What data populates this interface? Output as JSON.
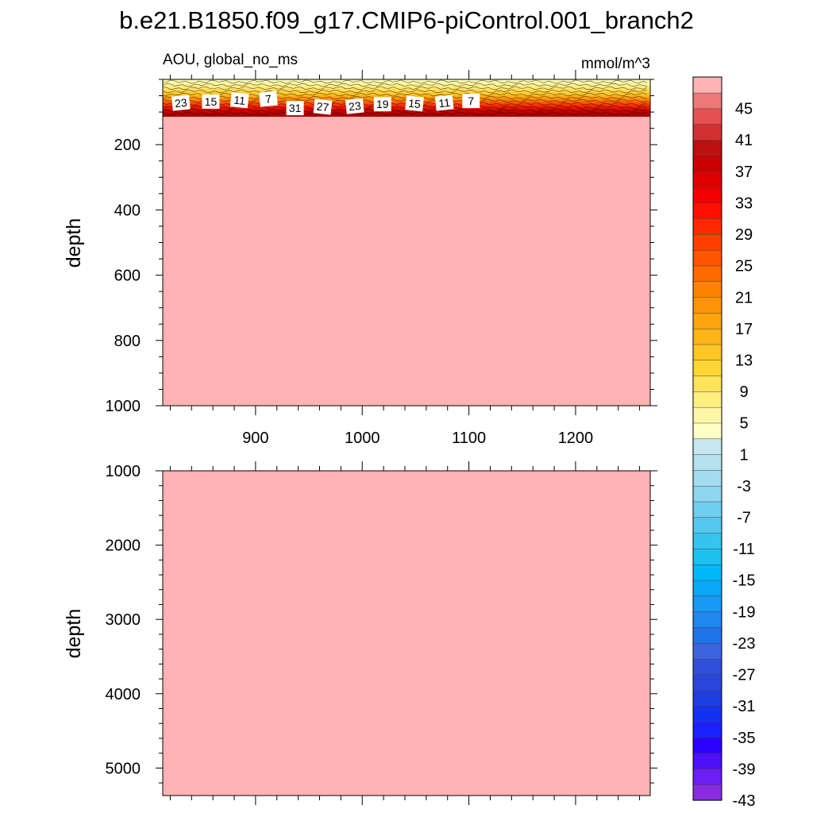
{
  "title": "b.e21.B1850.f09_g17.CMIP6-piControl.001_branch2",
  "chart_data": {
    "type": "heatmap",
    "variable_label": "AOU, global_no_ms",
    "units_label": "mmol/m^3",
    "colorbar": {
      "levels": [
        -45,
        -43,
        -41,
        -39,
        -37,
        -35,
        -33,
        -31,
        -29,
        -27,
        -25,
        -23,
        -21,
        -19,
        -17,
        -15,
        -13,
        -11,
        -9,
        -7,
        -5,
        -3,
        -1,
        1,
        3,
        5,
        7,
        9,
        11,
        13,
        15,
        17,
        19,
        21,
        23,
        25,
        27,
        29,
        31,
        33,
        35,
        37,
        39,
        41,
        43,
        45
      ],
      "tick_labels": [
        "45",
        "41",
        "37",
        "33",
        "29",
        "25",
        "21",
        "17",
        "13",
        "9",
        "5",
        "1",
        "-3",
        "-7",
        "-11",
        "-15",
        "-19",
        "-23",
        "-27",
        "-31",
        "-35",
        "-39",
        "-43"
      ],
      "colors": [
        "#8a2be2",
        "#6a1ef0",
        "#4e10f5",
        "#2a00ff",
        "#1a20ff",
        "#1530ee",
        "#1e3ee0",
        "#2846d8",
        "#3050d8",
        "#3a64e0",
        "#1f75e8",
        "#1f88f0",
        "#1a98f5",
        "#0aa6f7",
        "#00b8f8",
        "#1ec0f0",
        "#35c4f0",
        "#55c8f0",
        "#70cef0",
        "#8ed6f0",
        "#a4dcef",
        "#b5e0ee",
        "#c7e6f0",
        "#ffffc6",
        "#fff7a8",
        "#ffee80",
        "#ffe45a",
        "#ffd634",
        "#ffc524",
        "#ffb417",
        "#ffa30f",
        "#ff9306",
        "#ff8200",
        "#ff6a00",
        "#ff5400",
        "#ff3f00",
        "#ff2a00",
        "#ff1000",
        "#f00000",
        "#de0000",
        "#c80000",
        "#bd1010",
        "#d23030",
        "#e55050",
        "#ec7878",
        "#ffb3b3"
      ]
    },
    "panels": [
      {
        "y_label": "depth",
        "y_ticks": [
          200,
          400,
          600,
          800,
          1000
        ],
        "x_ticks": [
          900,
          1000,
          1100,
          1200
        ],
        "xlim": [
          813,
          1270
        ],
        "ylim": [
          1000,
          0
        ],
        "background_value": 45,
        "surface_layer_bottom_depth": 100,
        "contour_labels": [
          {
            "text": "23",
            "x": 830,
            "y": 72
          },
          {
            "text": "15",
            "x": 858,
            "y": 68
          },
          {
            "text": "11",
            "x": 885,
            "y": 64
          },
          {
            "text": "7",
            "x": 912,
            "y": 60
          },
          {
            "text": "31",
            "x": 937,
            "y": 88
          },
          {
            "text": "27",
            "x": 963,
            "y": 84
          },
          {
            "text": "23",
            "x": 993,
            "y": 82
          },
          {
            "text": "19",
            "x": 1019,
            "y": 76
          },
          {
            "text": "15",
            "x": 1049,
            "y": 74
          },
          {
            "text": "11",
            "x": 1077,
            "y": 72
          },
          {
            "text": "7",
            "x": 1102,
            "y": 66
          }
        ]
      },
      {
        "y_label": "depth",
        "y_ticks": [
          1000,
          2000,
          3000,
          4000,
          5000
        ],
        "x_ticks": [
          900,
          1000,
          1100,
          1200
        ],
        "xlim": [
          813,
          1270
        ],
        "ylim": [
          5370,
          1000
        ],
        "background_value": 45,
        "contour_labels": []
      }
    ]
  }
}
